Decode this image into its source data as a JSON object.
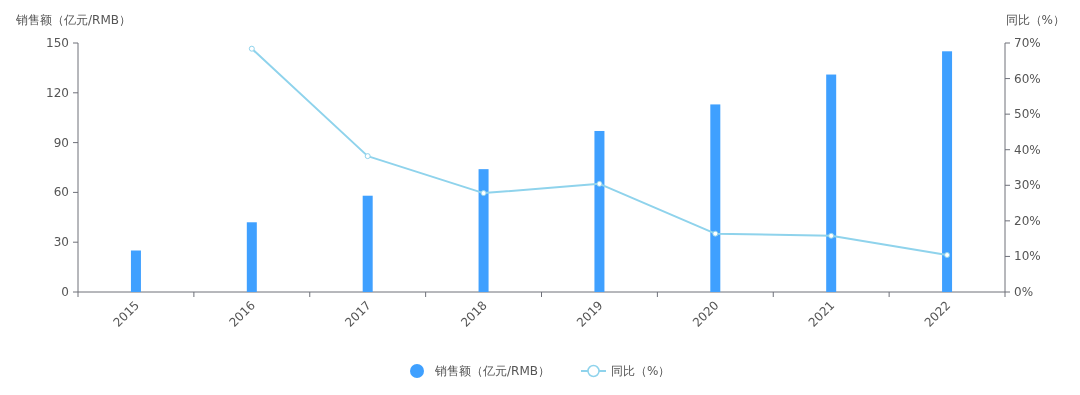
{
  "chart_data": {
    "type": "bar",
    "ylabel": "销售额（亿元/RMB）",
    "y2label": "同比（%）",
    "categories": [
      "2015",
      "2016",
      "2017",
      "2018",
      "2019",
      "2020",
      "2021",
      "2022"
    ],
    "series": [
      {
        "name": "销售额（亿元/RMB）",
        "color": "#3fa0ff",
        "values": [
          25,
          42,
          58,
          74,
          97,
          113,
          131,
          145
        ]
      },
      {
        "name": "同比（%）",
        "type": "line",
        "axis": "y2",
        "color": "#8fd3ec",
        "values": [
          null,
          68.4,
          38.2,
          27.8,
          30.4,
          16.4,
          15.8,
          10.4
        ]
      }
    ],
    "ylim": [
      0,
      150
    ],
    "yticks": [
      0,
      30,
      60,
      90,
      120,
      150
    ],
    "y2lim": [
      0,
      70
    ],
    "y2ticks": [
      {
        "value": 0,
        "label": "0%"
      },
      {
        "value": 10,
        "label": "10%"
      },
      {
        "value": 20,
        "label": "20%"
      },
      {
        "value": 30,
        "label": "30%"
      },
      {
        "value": 40,
        "label": "40%"
      },
      {
        "value": 50,
        "label": "50%"
      },
      {
        "value": 60,
        "label": "60%"
      },
      {
        "value": 70,
        "label": "70%"
      }
    ],
    "marker": "circle",
    "legend": "bottom",
    "grid": false
  }
}
